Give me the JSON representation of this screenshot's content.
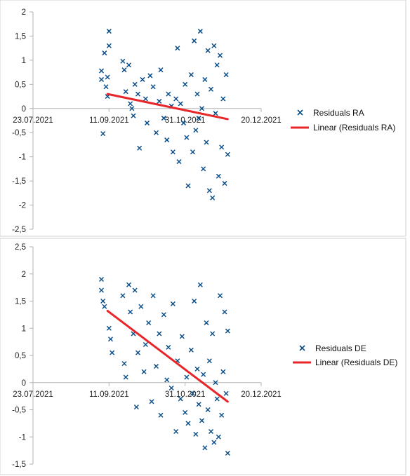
{
  "colors": {
    "marker": "#0b4f8a",
    "trend": "#e8262a",
    "axis": "#b3b3b3",
    "frame": "#d0d0d0"
  },
  "chart_data": [
    {
      "type": "scatter",
      "x_axis": {
        "type": "date",
        "range": [
          "23.07.2021",
          "20.12.2021"
        ],
        "tick_labels": [
          "23.07.2021",
          "11.09.2021",
          "31.10.2021",
          "20.12.2021"
        ]
      },
      "y_axis": {
        "range": [
          -2.5,
          2
        ],
        "step": 0.5,
        "tick_labels": [
          "2",
          "1,5",
          "1",
          "0,5",
          "0",
          "-0,5",
          "-1",
          "-1,5",
          "-2",
          "-2,5"
        ]
      },
      "grid": false,
      "legend_position": "right",
      "series": [
        {
          "name": "Residuals RA",
          "marker": "x",
          "color": "#0b4f8a",
          "points": [
            [
              "06.09.2021",
              0.78
            ],
            [
              "06.09.2021",
              0.6
            ],
            [
              "07.09.2021",
              -0.52
            ],
            [
              "08.09.2021",
              1.15
            ],
            [
              "10.09.2021",
              0.65
            ],
            [
              "11.09.2021",
              1.6
            ],
            [
              "11.09.2021",
              1.3
            ],
            [
              "10.09.2021",
              0.25
            ],
            [
              "09.09.2021",
              0.45
            ],
            [
              "20.09.2021",
              0.98
            ],
            [
              "21.09.2021",
              0.8
            ],
            [
              "22.09.2021",
              0.35
            ],
            [
              "24.09.2021",
              0.9
            ],
            [
              "25.09.2021",
              0.1
            ],
            [
              "26.09.2021",
              0.0
            ],
            [
              "27.09.2021",
              -0.15
            ],
            [
              "28.09.2021",
              0.5
            ],
            [
              "30.09.2021",
              0.3
            ],
            [
              "01.10.2021",
              -0.82
            ],
            [
              "03.10.2021",
              0.6
            ],
            [
              "05.10.2021",
              0.2
            ],
            [
              "06.10.2021",
              -0.3
            ],
            [
              "08.10.2021",
              0.68
            ],
            [
              "10.10.2021",
              0.45
            ],
            [
              "12.10.2021",
              -0.5
            ],
            [
              "14.10.2021",
              0.15
            ],
            [
              "15.10.2021",
              0.8
            ],
            [
              "17.10.2021",
              -0.2
            ],
            [
              "19.10.2021",
              -0.65
            ],
            [
              "20.10.2021",
              0.3
            ],
            [
              "22.10.2021",
              0.05
            ],
            [
              "23.10.2021",
              -0.9
            ],
            [
              "25.10.2021",
              0.2
            ],
            [
              "26.10.2021",
              1.25
            ],
            [
              "27.10.2021",
              -1.1
            ],
            [
              "28.10.2021",
              0.1
            ],
            [
              "30.10.2021",
              -0.3
            ],
            [
              "31.10.2021",
              0.5
            ],
            [
              "01.11.2021",
              -0.6
            ],
            [
              "02.11.2021",
              -1.6
            ],
            [
              "04.11.2021",
              0.7
            ],
            [
              "05.11.2021",
              -0.9
            ],
            [
              "06.11.2021",
              1.4
            ],
            [
              "07.11.2021",
              -0.45
            ],
            [
              "08.11.2021",
              0.3
            ],
            [
              "09.11.2021",
              -0.2
            ],
            [
              "10.11.2021",
              1.6
            ],
            [
              "11.11.2021",
              0.0
            ],
            [
              "12.11.2021",
              -1.25
            ],
            [
              "13.11.2021",
              0.6
            ],
            [
              "14.11.2021",
              -0.7
            ],
            [
              "15.11.2021",
              1.2
            ],
            [
              "16.11.2021",
              -1.7
            ],
            [
              "17.11.2021",
              0.4
            ],
            [
              "18.11.2021",
              -1.85
            ],
            [
              "19.11.2021",
              1.3
            ],
            [
              "20.11.2021",
              -0.1
            ],
            [
              "21.11.2021",
              0.9
            ],
            [
              "22.11.2021",
              -1.4
            ],
            [
              "23.11.2021",
              1.1
            ],
            [
              "24.11.2021",
              -0.8
            ],
            [
              "25.11.2021",
              0.2
            ],
            [
              "26.11.2021",
              -1.55
            ],
            [
              "27.11.2021",
              0.7
            ],
            [
              "28.11.2021",
              -0.95
            ]
          ]
        },
        {
          "name": "Linear (Residuals RA)",
          "type": "line",
          "color": "#e8262a",
          "linewidth": 3,
          "x": [
            "10.09.2021",
            "28.11.2021"
          ],
          "y": [
            0.3,
            -0.22
          ]
        }
      ]
    },
    {
      "type": "scatter",
      "x_axis": {
        "type": "date",
        "range": [
          "23.07.2021",
          "20.12.2021"
        ],
        "tick_labels": [
          "23.07.2021",
          "11.09.2021",
          "31.10.2021",
          "20.12.2021"
        ]
      },
      "y_axis": {
        "range": [
          -1.5,
          2.5
        ],
        "step": 0.5,
        "tick_labels": [
          "2,5",
          "2",
          "1,5",
          "1",
          "0,5",
          "0",
          "-0,5",
          "-1",
          "-1,5"
        ]
      },
      "grid": false,
      "legend_position": "right",
      "series": [
        {
          "name": "Residuals DE",
          "marker": "x",
          "color": "#0b4f8a",
          "points": [
            [
              "06.09.2021",
              1.9
            ],
            [
              "06.09.2021",
              1.7
            ],
            [
              "07.09.2021",
              1.5
            ],
            [
              "08.09.2021",
              1.4
            ],
            [
              "11.09.2021",
              1.0
            ],
            [
              "12.09.2021",
              0.8
            ],
            [
              "13.09.2021",
              0.55
            ],
            [
              "20.09.2021",
              1.6
            ],
            [
              "21.09.2021",
              0.35
            ],
            [
              "22.09.2021",
              0.1
            ],
            [
              "24.09.2021",
              1.8
            ],
            [
              "25.09.2021",
              1.3
            ],
            [
              "27.09.2021",
              0.9
            ],
            [
              "28.09.2021",
              1.7
            ],
            [
              "29.09.2021",
              -0.45
            ],
            [
              "30.09.2021",
              0.55
            ],
            [
              "02.10.2021",
              1.4
            ],
            [
              "04.10.2021",
              0.2
            ],
            [
              "05.10.2021",
              0.7
            ],
            [
              "07.10.2021",
              1.1
            ],
            [
              "09.10.2021",
              -0.35
            ],
            [
              "10.10.2021",
              1.6
            ],
            [
              "12.10.2021",
              0.3
            ],
            [
              "14.10.2021",
              0.9
            ],
            [
              "15.10.2021",
              -0.6
            ],
            [
              "17.10.2021",
              1.25
            ],
            [
              "19.10.2021",
              0.05
            ],
            [
              "20.10.2021",
              0.65
            ],
            [
              "22.10.2021",
              -0.1
            ],
            [
              "23.10.2021",
              1.45
            ],
            [
              "25.10.2021",
              -0.9
            ],
            [
              "26.10.2021",
              0.4
            ],
            [
              "28.10.2021",
              -0.3
            ],
            [
              "29.10.2021",
              0.85
            ],
            [
              "31.10.2021",
              -0.55
            ],
            [
              "01.11.2021",
              0.1
            ],
            [
              "02.11.2021",
              -0.75
            ],
            [
              "04.11.2021",
              0.6
            ],
            [
              "05.11.2021",
              -0.2
            ],
            [
              "06.11.2021",
              1.5
            ],
            [
              "07.11.2021",
              -0.95
            ],
            [
              "08.11.2021",
              0.25
            ],
            [
              "09.11.2021",
              -0.4
            ],
            [
              "10.11.2021",
              1.8
            ],
            [
              "11.11.2021",
              -0.7
            ],
            [
              "12.11.2021",
              0.15
            ],
            [
              "13.11.2021",
              -1.2
            ],
            [
              "14.11.2021",
              1.1
            ],
            [
              "15.11.2021",
              -0.5
            ],
            [
              "16.11.2021",
              0.4
            ],
            [
              "17.11.2021",
              -0.9
            ],
            [
              "18.11.2021",
              0.9
            ],
            [
              "19.11.2021",
              -1.1
            ],
            [
              "20.11.2021",
              0.0
            ],
            [
              "21.11.2021",
              -0.3
            ],
            [
              "22.11.2021",
              -1.0
            ],
            [
              "23.11.2021",
              1.6
            ],
            [
              "24.11.2021",
              -0.6
            ],
            [
              "25.11.2021",
              0.2
            ],
            [
              "26.11.2021",
              1.3
            ],
            [
              "27.11.2021",
              -0.2
            ],
            [
              "28.11.2021",
              -1.3
            ],
            [
              "28.11.2021",
              0.95
            ]
          ]
        },
        {
          "name": "Linear (Residuals DE)",
          "type": "line",
          "color": "#e8262a",
          "linewidth": 3,
          "x": [
            "10.09.2021",
            "28.11.2021"
          ],
          "y": [
            1.32,
            -0.35
          ]
        }
      ]
    }
  ]
}
